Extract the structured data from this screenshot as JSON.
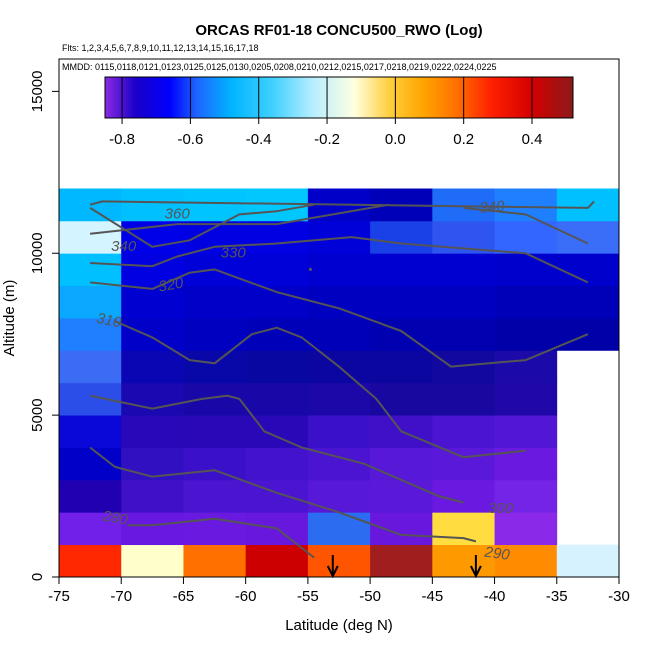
{
  "chart_data": {
    "type": "heatmap",
    "title": "ORCAS RF01-18 CONCU500_RWO (Log)",
    "flights_text": "Flts: 1,2,3,4,5,6,7,8,9,10,11,12,13,14,15,16,17,18",
    "dates_text": "MMDD: 0115,0118,0121,0123,0125,0125,0130,0205,0208,0210,0212,0215,0217,0218,0219,0222,0224,0225",
    "xlabel": "Latitude (deg N)",
    "ylabel": "Altitude (m)",
    "xlim": [
      -75,
      -30
    ],
    "ylim": [
      0,
      16000
    ],
    "xticks": [
      -75,
      -70,
      -65,
      -60,
      -55,
      -50,
      -45,
      -40,
      -35,
      -30
    ],
    "xtick_labels": [
      "-75",
      "-70",
      "-65",
      "-60",
      "-55",
      "-50",
      "-45",
      "-40",
      "-35",
      "-30"
    ],
    "yticks": [
      0,
      5000,
      10000,
      15000
    ],
    "ytick_labels": [
      "0",
      "5000",
      "10000",
      "15000"
    ],
    "colorbar": {
      "min": -0.85,
      "max": 0.52,
      "ticks": [
        -0.8,
        -0.6,
        -0.4,
        -0.2,
        0.0,
        0.2,
        0.4
      ],
      "tick_labels": [
        "-0.8",
        "-0.6",
        "-0.4",
        "-0.2",
        "0.0",
        "0.2",
        "0.4"
      ],
      "stops": [
        {
          "v": -0.85,
          "c": "#8a2be2"
        },
        {
          "v": -0.76,
          "c": "#1a00c8"
        },
        {
          "v": -0.66,
          "c": "#0000ff"
        },
        {
          "v": -0.58,
          "c": "#1e66ff"
        },
        {
          "v": -0.48,
          "c": "#00b4ff"
        },
        {
          "v": -0.36,
          "c": "#40d0ff"
        },
        {
          "v": -0.24,
          "c": "#b8eeff"
        },
        {
          "v": -0.12,
          "c": "#ffffe0"
        },
        {
          "v": -0.02,
          "c": "#ffd040"
        },
        {
          "v": 0.08,
          "c": "#ffa500"
        },
        {
          "v": 0.18,
          "c": "#ff7000"
        },
        {
          "v": 0.28,
          "c": "#ff2000"
        },
        {
          "v": 0.4,
          "c": "#d40000"
        },
        {
          "v": 0.52,
          "c": "#8b1a1a"
        }
      ]
    },
    "grid": {
      "lat_edges": [
        -75,
        -70,
        -65,
        -60,
        -55,
        -50,
        -45,
        -40,
        -35,
        -30
      ],
      "alt_edges": [
        0,
        1000,
        2000,
        3000,
        4000,
        5000,
        6000,
        7000,
        8000,
        9000,
        10000,
        11000,
        12000
      ],
      "rows": [
        [
          "#ff2800",
          "#ffffcc",
          "#ff7000",
          "#cc0000",
          "#ff5500",
          "#a01e1e",
          "#ff9900",
          "#ff8c00",
          "#d6f2ff"
        ],
        [
          "#7020e8",
          "#6818e0",
          "#6a1ae0",
          "#6818dc",
          "#2c6cf0",
          "#6818dc",
          "#ffdd40",
          "#8a2ae8",
          null
        ],
        [
          "#2000b0",
          "#4010c8",
          "#4a14d0",
          "#4a14d0",
          "#5818d8",
          "#5a18d8",
          "#6a1ae0",
          "#7424e6",
          null
        ],
        [
          "#0000c8",
          "#3010c0",
          "#3a10c8",
          "#4212cc",
          "#4a14d0",
          "#5818d8",
          "#5a18d8",
          "#6a1ae0",
          null
        ],
        [
          "#0a08d8",
          "#2808b8",
          "#2a08b8",
          "#2a08b8",
          "#3a10c8",
          "#4010c8",
          "#4a14d0",
          "#5018d4",
          null
        ],
        [
          "#2c4ee8",
          "#1a08b0",
          "#1808a8",
          "#1808a8",
          "#1c08a8",
          "#1808a0",
          "#1808a0",
          "#2008a8",
          null
        ],
        [
          "#3c6cf4",
          "#0a06b4",
          "#0808a8",
          "#0808a0",
          "#0c06a0",
          "#0c06a0",
          "#1208a0",
          "#1c0aa8",
          null
        ],
        [
          "#1e80ff",
          "#0000c8",
          "#0000c0",
          "#0000b8",
          "#0000b8",
          "#0000b0",
          "#0000b0",
          "#0000a8",
          "#0000a8"
        ],
        [
          "#0aa8ff",
          "#0000d0",
          "#0000c8",
          "#0000c8",
          "#0000c0",
          "#0000c0",
          "#0000c0",
          "#0000b8",
          "#0000b8"
        ],
        [
          "#00c0ff",
          "#0000e0",
          "#0000d8",
          "#0000d8",
          "#0000d0",
          "#0000d0",
          "#0000d0",
          "#0000cc",
          "#0000cc"
        ],
        [
          "#d4f4ff",
          "#0000e8",
          "#0000e0",
          "#0000e0",
          "#0000d8",
          "#1a40e8",
          "#2f55f0",
          "#3366ff",
          "#3a6ef8"
        ],
        [
          "#00b8ff",
          "#00c0ff",
          "#00c4ff",
          "#00c8ff",
          "#0000c8",
          "#0000b8",
          "#1e6cf8",
          "#1e80ff",
          "#00c0ff"
        ]
      ]
    },
    "contours": [
      {
        "label": "280",
        "points": [
          [
            -72.5,
            4000
          ],
          [
            -70.5,
            3400
          ],
          [
            -67.5,
            3100
          ],
          [
            -62.5,
            3300
          ],
          [
            -57.5,
            2600
          ],
          [
            -52.5,
            2000
          ],
          [
            -47.5,
            1300
          ],
          [
            -42.5,
            1200
          ],
          [
            -41.5,
            1100
          ]
        ]
      },
      {
        "label": "290",
        "points": [
          [
            -69.5,
            1600
          ],
          [
            -67.5,
            1600
          ],
          [
            -62.5,
            1800
          ],
          [
            -57.5,
            1500
          ],
          [
            -54.5,
            600
          ]
        ]
      },
      {
        "label": "300",
        "points": [
          [
            -72.5,
            5600
          ],
          [
            -67.5,
            5200
          ],
          [
            -63.5,
            5500
          ],
          [
            -61.5,
            5600
          ],
          [
            -60.5,
            5500
          ],
          [
            -58.5,
            4500
          ],
          [
            -55.5,
            4000
          ],
          [
            -50.5,
            3500
          ],
          [
            -47.5,
            3000
          ],
          [
            -44.5,
            2500
          ],
          [
            -42.5,
            2300
          ]
        ]
      },
      {
        "label": "",
        "points": [
          [
            -70.5,
            7900
          ],
          [
            -67.5,
            7400
          ],
          [
            -64.5,
            6700
          ],
          [
            -62.5,
            6600
          ],
          [
            -59.5,
            7500
          ],
          [
            -57.5,
            7700
          ],
          [
            -55.5,
            7400
          ],
          [
            -52.5,
            6500
          ],
          [
            -49.5,
            5500
          ],
          [
            -47.5,
            4500
          ],
          [
            -42.5,
            3700
          ],
          [
            -37.5,
            3900
          ]
        ]
      },
      {
        "label": "310",
        "points": [
          [
            -72.5,
            9100
          ],
          [
            -67.5,
            8900
          ],
          [
            -64.5,
            9400
          ],
          [
            -62.5,
            9500
          ],
          [
            -57.5,
            8800
          ],
          [
            -52.5,
            8300
          ],
          [
            -47.5,
            7600
          ],
          [
            -43.5,
            6500
          ],
          [
            -37.5,
            6700
          ],
          [
            -32.5,
            7500
          ]
        ]
      },
      {
        "label": "320",
        "points": [
          [
            -72.5,
            9700
          ],
          [
            -67.5,
            9600
          ],
          [
            -65.5,
            9900
          ],
          [
            -62.5,
            10200
          ],
          [
            -57.5,
            10300
          ],
          [
            -51.5,
            10500
          ],
          [
            -47.5,
            10300
          ],
          [
            -37.5,
            10000
          ],
          [
            -32.5,
            9100
          ]
        ]
      },
      {
        "label": "330",
        "points": [
          [
            -72.5,
            10600
          ],
          [
            -65.5,
            10900
          ],
          [
            -57.5,
            10900
          ],
          [
            -48.5,
            11500
          ]
        ]
      },
      {
        "label": "340",
        "points": [
          [
            -72.5,
            11400
          ],
          [
            -67.5,
            10200
          ],
          [
            -64.5,
            10400
          ],
          [
            -60.5,
            11200
          ],
          [
            -57.5,
            11300
          ],
          [
            -54.5,
            11500
          ]
        ]
      },
      {
        "label": "360",
        "points": [
          [
            -42.5,
            11400
          ],
          [
            -37.5,
            11200
          ],
          [
            -32.5,
            10300
          ]
        ]
      },
      {
        "label": "",
        "points": [
          [
            -72.5,
            11500
          ],
          [
            -71.5,
            11600
          ],
          [
            -32.5,
            11400
          ],
          [
            -32.0,
            11600
          ]
        ]
      }
    ],
    "contour_labels": [
      {
        "text": "360",
        "lat": -65.5,
        "alt": 11200,
        "angle": 0
      },
      {
        "text": "340",
        "lat": -69.8,
        "alt": 10200,
        "angle": 0
      },
      {
        "text": "330",
        "lat": -61.0,
        "alt": 10000,
        "angle": 0
      },
      {
        "text": "320",
        "lat": -66.0,
        "alt": 9000,
        "angle": -10
      },
      {
        "text": "310",
        "lat": -71.0,
        "alt": 7900,
        "angle": 12
      },
      {
        "text": "340",
        "lat": -40.2,
        "alt": 11400,
        "angle": -5
      },
      {
        "text": "300",
        "lat": -39.5,
        "alt": 2100,
        "angle": 0
      },
      {
        "text": "290",
        "lat": -39.8,
        "alt": 700,
        "angle": 8
      },
      {
        "text": "280",
        "lat": -70.5,
        "alt": 1800,
        "angle": 10
      }
    ],
    "markers": [
      {
        "lat": -53.0,
        "type": "arrow-down"
      },
      {
        "lat": -41.5,
        "type": "arrow-down"
      }
    ],
    "dot": {
      "lat": -54.8,
      "alt": 9500
    }
  }
}
